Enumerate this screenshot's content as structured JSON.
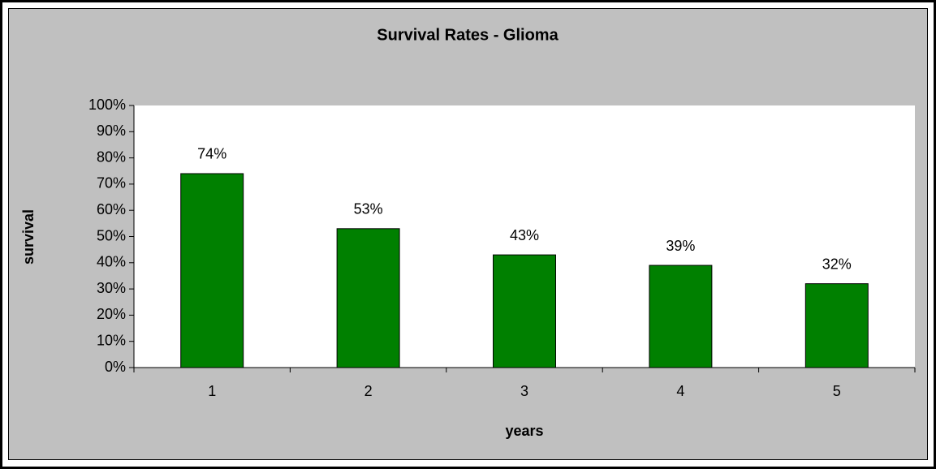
{
  "chart_data": {
    "type": "bar",
    "title": "Survival Rates - Glioma",
    "x_label": "years",
    "y_label": "survival",
    "categories": [
      "1",
      "2",
      "3",
      "4",
      "5"
    ],
    "values": [
      74,
      53,
      43,
      39,
      32
    ],
    "value_labels": [
      "74%",
      "53%",
      "43%",
      "39%",
      "32%"
    ],
    "color": "#008000",
    "ylim": [
      0,
      100
    ],
    "yticks": [
      {
        "value": 0,
        "label": "0%"
      },
      {
        "value": 10,
        "label": "10%"
      },
      {
        "value": 20,
        "label": "20%"
      },
      {
        "value": 30,
        "label": "30%"
      },
      {
        "value": 40,
        "label": "40%"
      },
      {
        "value": 50,
        "label": "50%"
      },
      {
        "value": 60,
        "label": "60%"
      },
      {
        "value": 70,
        "label": "70%"
      },
      {
        "value": 80,
        "label": "80%"
      },
      {
        "value": 90,
        "label": "90%"
      },
      {
        "value": 100,
        "label": "100%"
      }
    ],
    "grid": false
  }
}
